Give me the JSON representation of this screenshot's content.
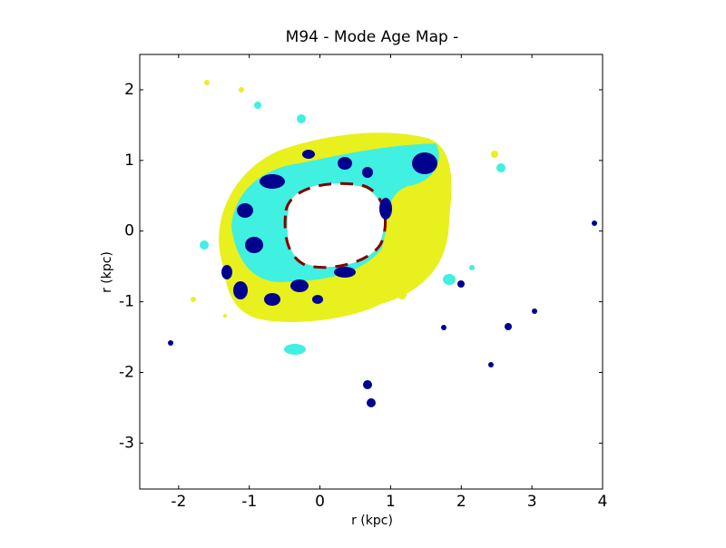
{
  "chart_data": {
    "type": "image",
    "title": "M94 - Mode Age Map -",
    "xlabel": "r (kpc)",
    "ylabel": "r (kpc)",
    "xlim": [
      -2.55,
      4.0
    ],
    "ylim": [
      -3.65,
      2.5
    ],
    "xticks": [
      -2,
      -1,
      0,
      1,
      2,
      3,
      4
    ],
    "yticks": [
      -3,
      -2,
      -1,
      0,
      1,
      2
    ]
  }
}
